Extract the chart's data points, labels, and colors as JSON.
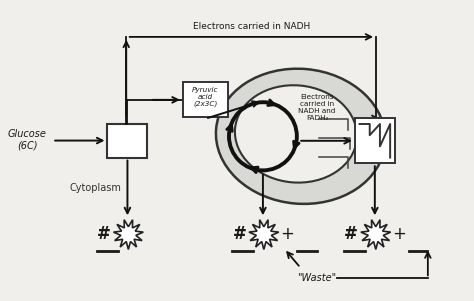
{
  "bg_color": "#f0efeb",
  "glucose_label": "Glucose\n(6C)",
  "cytoplasm_label": "Cytoplasm",
  "pyruvic_label": "Pyruvic\nacid\n(2x3C)",
  "electrons_nadh_top": "Electrons carried in NADH",
  "electrons_nadh_fadh2": "Electrons\ncarried in\nNADH and\nFADH₂",
  "waste_label": "\"Waste\"",
  "ac": "#111111",
  "lc": "#444444",
  "bc": "#ffffff",
  "xlim": [
    0,
    10
  ],
  "ylim": [
    0,
    6.3
  ]
}
